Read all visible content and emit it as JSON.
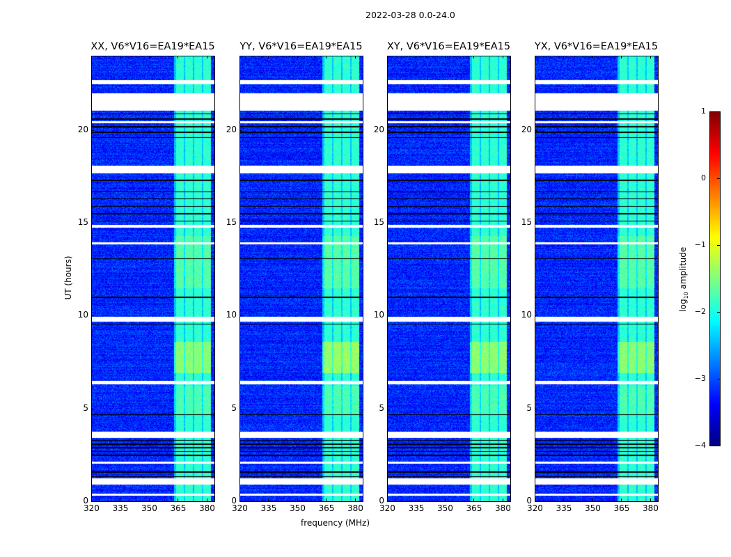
{
  "chart_data": {
    "type": "heatmap",
    "suptitle": "2022-03-28 0.0-24.0",
    "xlabel": "frequency (MHz)",
    "ylabel": "UT (hours)",
    "xlim": [
      320,
      384
    ],
    "ylim": [
      0,
      24
    ],
    "xticks": [
      "320",
      "335",
      "350",
      "365",
      "380"
    ],
    "yticks": [
      "0",
      "5",
      "10",
      "15",
      "20"
    ],
    "panels": [
      {
        "title": "XX, V6*V16=EA19*EA15",
        "bright_scale": 1.0
      },
      {
        "title": "YY, V6*V16=EA19*EA15",
        "bright_scale": 1.15
      },
      {
        "title": "XY, V6*V16=EA19*EA15",
        "bright_scale": 1.05
      },
      {
        "title": "YX, V6*V16=EA19*EA15",
        "bright_scale": 1.0
      }
    ],
    "colorbar": {
      "label": "log10 amplitude",
      "label_main": "log",
      "label_sub": "10",
      "label_rest": " amplitude",
      "range": [
        -4,
        1
      ],
      "ticks": [
        "1",
        "0",
        "−1",
        "−2",
        "−3",
        "−4"
      ],
      "colormap": "jet"
    },
    "background_level": -3.2,
    "rfi_band_mhz": [
      363,
      382
    ],
    "rfi_level": -1.9,
    "flagged_ut_ranges": [
      [
        22.5,
        22.7
      ],
      [
        21.05,
        22.0
      ],
      [
        20.4,
        20.5
      ],
      [
        17.7,
        18.1
      ],
      [
        14.75,
        14.9
      ],
      [
        13.85,
        13.95
      ],
      [
        9.7,
        9.95
      ],
      [
        6.3,
        6.5
      ],
      [
        3.45,
        3.75
      ],
      [
        2.05,
        2.15
      ],
      [
        0.9,
        1.25
      ],
      [
        0.3,
        0.45
      ]
    ],
    "bad_ut_rows": [
      20.9,
      20.6,
      20.2,
      19.9,
      19.6,
      17.3,
      16.7,
      16.3,
      15.9,
      15.5,
      15.1,
      13.1,
      11.0,
      9.55,
      4.7,
      3.3,
      3.1,
      2.9,
      2.7,
      2.5,
      1.6,
      1.35
    ],
    "bright_ut_range": [
      6.9,
      8.6
    ]
  }
}
